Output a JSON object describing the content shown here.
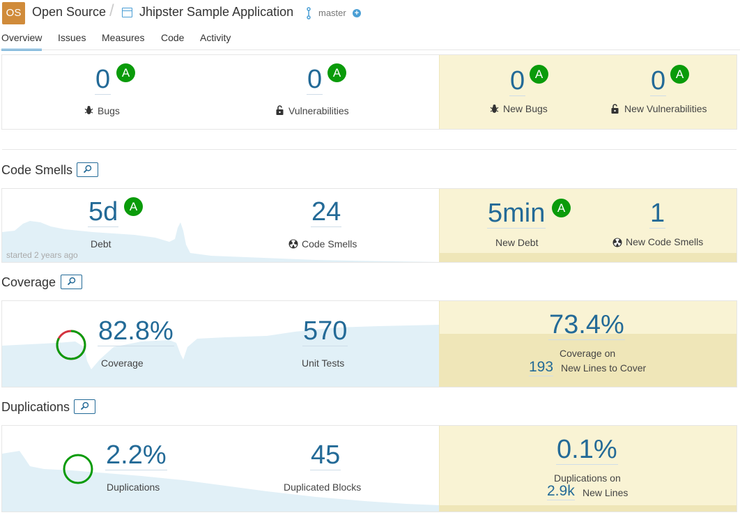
{
  "header": {
    "org_avatar": "OS",
    "org_name": "Open Source",
    "separator": "/",
    "project_name": "Jhipster Sample Application",
    "branch": "master",
    "branch_icon": "branch-icon",
    "add_icon": "plus-circle-icon"
  },
  "tabs": [
    {
      "label": "Overview",
      "active": true
    },
    {
      "label": "Issues",
      "active": false
    },
    {
      "label": "Measures",
      "active": false
    },
    {
      "label": "Code",
      "active": false
    },
    {
      "label": "Activity",
      "active": false
    }
  ],
  "reliability": {
    "bugs": {
      "value": "0",
      "rating": "A",
      "label": "Bugs",
      "icon": "bug-icon"
    },
    "vulnerabilities": {
      "value": "0",
      "rating": "A",
      "label": "Vulnerabilities",
      "icon": "lock-icon"
    },
    "new_bugs": {
      "value": "0",
      "rating": "A",
      "label": "New Bugs",
      "icon": "bug-icon"
    },
    "new_vulnerabilities": {
      "value": "0",
      "rating": "A",
      "label": "New Vulnerabilities",
      "icon": "lock-icon"
    }
  },
  "code_smells": {
    "title": "Code Smells",
    "debt": {
      "value": "5d",
      "rating": "A",
      "label": "Debt"
    },
    "smells": {
      "value": "24",
      "label": "Code Smells",
      "icon": "radiation-icon"
    },
    "new_debt": {
      "value": "5min",
      "rating": "A",
      "label": "New Debt"
    },
    "new_smells": {
      "value": "1",
      "label": "New Code Smells",
      "icon": "radiation-icon"
    },
    "history_note": "started 2 years ago"
  },
  "coverage": {
    "title": "Coverage",
    "coverage": {
      "value": "82.8%",
      "label": "Coverage",
      "percent": 82.8
    },
    "unit_tests": {
      "value": "570",
      "label": "Unit Tests"
    },
    "new_coverage": {
      "value": "73.4%",
      "label": "Coverage on",
      "lines_value": "193",
      "lines_label": "New Lines to Cover"
    }
  },
  "duplications": {
    "title": "Duplications",
    "duplications": {
      "value": "2.2%",
      "label": "Duplications",
      "percent": 2.2
    },
    "blocks": {
      "value": "45",
      "label": "Duplicated Blocks"
    },
    "new_duplications": {
      "value": "0.1%",
      "label": "Duplications on",
      "lines_value": "2.9k",
      "lines_label": "New Lines"
    }
  },
  "colors": {
    "accent": "#236a97",
    "rating_a": "#0a9b0a",
    "leak_bg": "#f9f3d4",
    "coverage_good": "#0a9b0a",
    "coverage_bad": "#d4333f"
  }
}
